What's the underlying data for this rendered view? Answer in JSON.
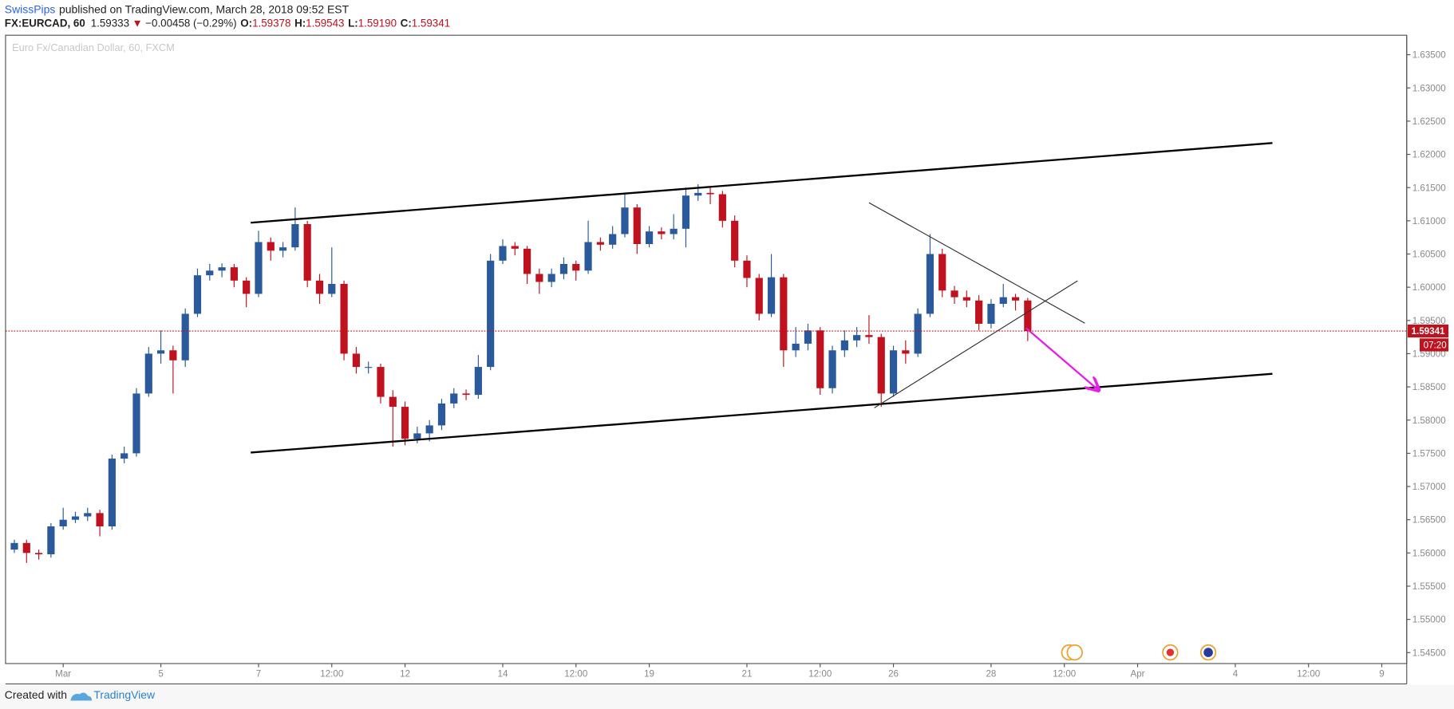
{
  "header": {
    "author": "SwissPips",
    "published": "published on TradingView.com, March 28, 2018 09:52 EST",
    "symbol": "FX:EURCAD, 60",
    "price": "1.59333",
    "arrow": "▼",
    "change": "−0.00458 (−0.29%)",
    "o_label": "O:",
    "o": "1.59378",
    "h_label": "H:",
    "h": "1.59543",
    "l_label": "L:",
    "l": "1.59190",
    "c_label": "C:",
    "c": "1.59341"
  },
  "chart_data": {
    "type": "candlestick",
    "legend": "Euro Fx/Canadian Dollar, 60, FXCM",
    "up_color": "#2a5a9b",
    "down_color": "#c0111f",
    "grid": false,
    "xlim": [
      -1.18,
      27.51
    ],
    "xticks": [
      {
        "value": 0,
        "label": "Mar"
      },
      {
        "value": 2,
        "label": "5"
      },
      {
        "value": 4,
        "label": "7"
      },
      {
        "value": 5.5,
        "label": "12:00"
      },
      {
        "value": 7,
        "label": "12"
      },
      {
        "value": 9,
        "label": "14"
      },
      {
        "value": 10.5,
        "label": "12:00"
      },
      {
        "value": 12,
        "label": "19"
      },
      {
        "value": 14,
        "label": "21"
      },
      {
        "value": 15.5,
        "label": "12:00"
      },
      {
        "value": 17,
        "label": "26"
      },
      {
        "value": 19,
        "label": "28"
      },
      {
        "value": 20.5,
        "label": "12:00"
      },
      {
        "value": 22,
        "label": "Apr"
      },
      {
        "value": 24,
        "label": "4"
      },
      {
        "value": 25.5,
        "label": "12:00"
      },
      {
        "value": 27,
        "label": "9"
      }
    ],
    "ylim": [
      1.54335,
      1.63793
    ],
    "yticks": [
      {
        "value": 1.545,
        "label": "1.54500"
      },
      {
        "value": 1.55,
        "label": "1.55000"
      },
      {
        "value": 1.555,
        "label": "1.55500"
      },
      {
        "value": 1.56,
        "label": "1.56000"
      },
      {
        "value": 1.565,
        "label": "1.56500"
      },
      {
        "value": 1.57,
        "label": "1.57000"
      },
      {
        "value": 1.575,
        "label": "1.57500"
      },
      {
        "value": 1.58,
        "label": "1.58000"
      },
      {
        "value": 1.585,
        "label": "1.58500"
      },
      {
        "value": 1.59,
        "label": "1.59000"
      },
      {
        "value": 1.595,
        "label": "1.59500"
      },
      {
        "value": 1.6,
        "label": "1.60000"
      },
      {
        "value": 1.605,
        "label": "1.60500"
      },
      {
        "value": 1.61,
        "label": "1.61000"
      },
      {
        "value": 1.615,
        "label": "1.61500"
      },
      {
        "value": 1.62,
        "label": "1.62000"
      },
      {
        "value": 1.625,
        "label": "1.62500"
      },
      {
        "value": 1.63,
        "label": "1.63000"
      },
      {
        "value": 1.635,
        "label": "1.63500"
      }
    ],
    "x": [
      -1,
      -0.75,
      -0.5,
      -0.25,
      0,
      0.25,
      0.5,
      0.75,
      1,
      1.25,
      1.5,
      1.75,
      2,
      2.25,
      2.5,
      2.75,
      3,
      3.25,
      3.5,
      3.75,
      4,
      4.25,
      4.5,
      4.75,
      5,
      5.25,
      5.5,
      5.75,
      6,
      6.25,
      6.5,
      6.75,
      7,
      7.25,
      7.5,
      7.75,
      8,
      8.25,
      8.5,
      8.75,
      9,
      9.25,
      9.5,
      9.75,
      10,
      10.25,
      10.5,
      10.75,
      11,
      11.25,
      11.5,
      11.75,
      12,
      12.25,
      12.5,
      12.75,
      13,
      13.25,
      13.5,
      13.75,
      14,
      14.25,
      14.5,
      14.75,
      15,
      15.25,
      15.5,
      15.75,
      16,
      16.25,
      16.5,
      16.75,
      17,
      17.25,
      17.5,
      17.75,
      18,
      18.25,
      18.5,
      18.75,
      19,
      19.25,
      19.5,
      19.75
    ],
    "open": [
      1.5605,
      1.5615,
      1.56,
      1.5598,
      1.564,
      1.565,
      1.5655,
      1.566,
      1.564,
      1.5742,
      1.575,
      1.584,
      1.59,
      1.5905,
      1.589,
      1.596,
      1.6018,
      1.6025,
      1.603,
      1.601,
      1.599,
      1.6068,
      1.6055,
      1.606,
      1.6095,
      1.601,
      1.599,
      1.6005,
      1.59,
      1.588,
      1.588,
      1.5835,
      1.582,
      1.5772,
      1.578,
      1.5792,
      1.5825,
      1.584,
      1.5838,
      1.588,
      1.604,
      1.6062,
      1.6058,
      1.602,
      1.6008,
      1.602,
      1.6035,
      1.6025,
      1.6068,
      1.6064,
      1.608,
      1.612,
      1.6065,
      1.6084,
      1.608,
      1.6088,
      1.6138,
      1.6142,
      1.614,
      1.61,
      1.604,
      1.6014,
      1.596,
      1.6015,
      1.5905,
      1.5915,
      1.5935,
      1.5848,
      1.5905,
      1.592,
      1.5928,
      1.5925,
      1.584,
      1.5905,
      1.59,
      1.596,
      1.605,
      1.5995,
      1.5985,
      1.598,
      1.5945,
      1.5975,
      1.5985,
      1.598
    ],
    "high": [
      1.562,
      1.562,
      1.5605,
      1.5645,
      1.5668,
      1.5662,
      1.5668,
      1.5665,
      1.5748,
      1.576,
      1.5848,
      1.591,
      1.5935,
      1.5912,
      1.5968,
      1.6028,
      1.6035,
      1.6036,
      1.6035,
      1.6015,
      1.6085,
      1.6075,
      1.6068,
      1.612,
      1.61,
      1.602,
      1.606,
      1.601,
      1.591,
      1.5888,
      1.5885,
      1.5845,
      1.5828,
      1.579,
      1.58,
      1.5832,
      1.5848,
      1.5846,
      1.5898,
      1.605,
      1.6072,
      1.6068,
      1.6062,
      1.6028,
      1.6028,
      1.6045,
      1.604,
      1.61,
      1.6075,
      1.6092,
      1.614,
      1.6125,
      1.6092,
      1.609,
      1.611,
      1.615,
      1.6155,
      1.6152,
      1.6145,
      1.6108,
      1.6048,
      1.602,
      1.605,
      1.602,
      1.594,
      1.5945,
      1.594,
      1.5912,
      1.5935,
      1.594,
      1.5958,
      1.593,
      1.5912,
      1.592,
      1.5968,
      1.608,
      1.6058,
      1.6002,
      1.5995,
      1.5988,
      1.5982,
      1.6005,
      1.599,
      1.5984
    ],
    "low": [
      1.56,
      1.5585,
      1.559,
      1.5593,
      1.5635,
      1.5645,
      1.5648,
      1.5625,
      1.5635,
      1.5735,
      1.5745,
      1.5835,
      1.5885,
      1.584,
      1.588,
      1.5955,
      1.601,
      1.6015,
      1.6,
      1.597,
      1.5985,
      1.604,
      1.6045,
      1.6055,
      1.6,
      1.5975,
      1.5985,
      1.589,
      1.587,
      1.587,
      1.5825,
      1.576,
      1.5762,
      1.5765,
      1.5768,
      1.5785,
      1.5818,
      1.583,
      1.5832,
      1.5875,
      1.6035,
      1.6048,
      1.6005,
      1.599,
      1.6,
      1.6012,
      1.601,
      1.602,
      1.6055,
      1.6058,
      1.6075,
      1.605,
      1.606,
      1.6072,
      1.6072,
      1.606,
      1.613,
      1.6125,
      1.609,
      1.603,
      1.6,
      1.595,
      1.5955,
      1.588,
      1.5895,
      1.5905,
      1.5838,
      1.584,
      1.5895,
      1.591,
      1.5915,
      1.582,
      1.5835,
      1.5885,
      1.5895,
      1.5955,
      1.5985,
      1.5975,
      1.597,
      1.5935,
      1.5938,
      1.597,
      1.5965,
      1.5919
    ],
    "close": [
      1.5615,
      1.56,
      1.5598,
      1.564,
      1.565,
      1.5655,
      1.566,
      1.564,
      1.5742,
      1.575,
      1.584,
      1.59,
      1.5905,
      1.589,
      1.596,
      1.6018,
      1.6025,
      1.603,
      1.601,
      1.599,
      1.6068,
      1.6055,
      1.606,
      1.6095,
      1.601,
      1.599,
      1.6005,
      1.59,
      1.588,
      1.588,
      1.5835,
      1.582,
      1.5772,
      1.578,
      1.5792,
      1.5825,
      1.584,
      1.5838,
      1.588,
      1.604,
      1.6062,
      1.6058,
      1.602,
      1.6008,
      1.602,
      1.6035,
      1.6025,
      1.6068,
      1.6064,
      1.608,
      1.612,
      1.6065,
      1.6084,
      1.608,
      1.6088,
      1.6138,
      1.6142,
      1.614,
      1.61,
      1.604,
      1.6014,
      1.596,
      1.6015,
      1.5905,
      1.5915,
      1.5935,
      1.5848,
      1.5905,
      1.592,
      1.5928,
      1.5925,
      1.584,
      1.5905,
      1.59,
      1.596,
      1.605,
      1.5995,
      1.5985,
      1.598,
      1.5945,
      1.5975,
      1.5985,
      1.598,
      1.59341
    ],
    "last_price": 1.59341,
    "last_color": "#c0111f",
    "countdown": "07:20",
    "drawings": [
      {
        "x": [
          3.84,
          24.76
        ],
        "y": [
          1.60971,
          1.62171
        ],
        "color": "#000000",
        "width": 2
      },
      {
        "x": [
          3.84,
          24.76
        ],
        "y": [
          1.57511,
          1.58697
        ],
        "color": "#000000",
        "width": 2
      },
      {
        "x": [
          16.5,
          20.92
        ],
        "y": [
          1.61272,
          1.59459
        ],
        "color": "#333333",
        "width": 1
      },
      {
        "x": [
          16.61,
          20.77
        ],
        "y": [
          1.58185,
          1.60096
        ],
        "color": "#333333",
        "width": 1
      },
      {
        "x": [
          19.72,
          21.2
        ],
        "y": [
          1.59384,
          1.5845
        ],
        "color": "#e91ee9",
        "width": 2,
        "arrow": true
      }
    ]
  },
  "footer": {
    "created": "Created with",
    "brand": "TradingView"
  }
}
